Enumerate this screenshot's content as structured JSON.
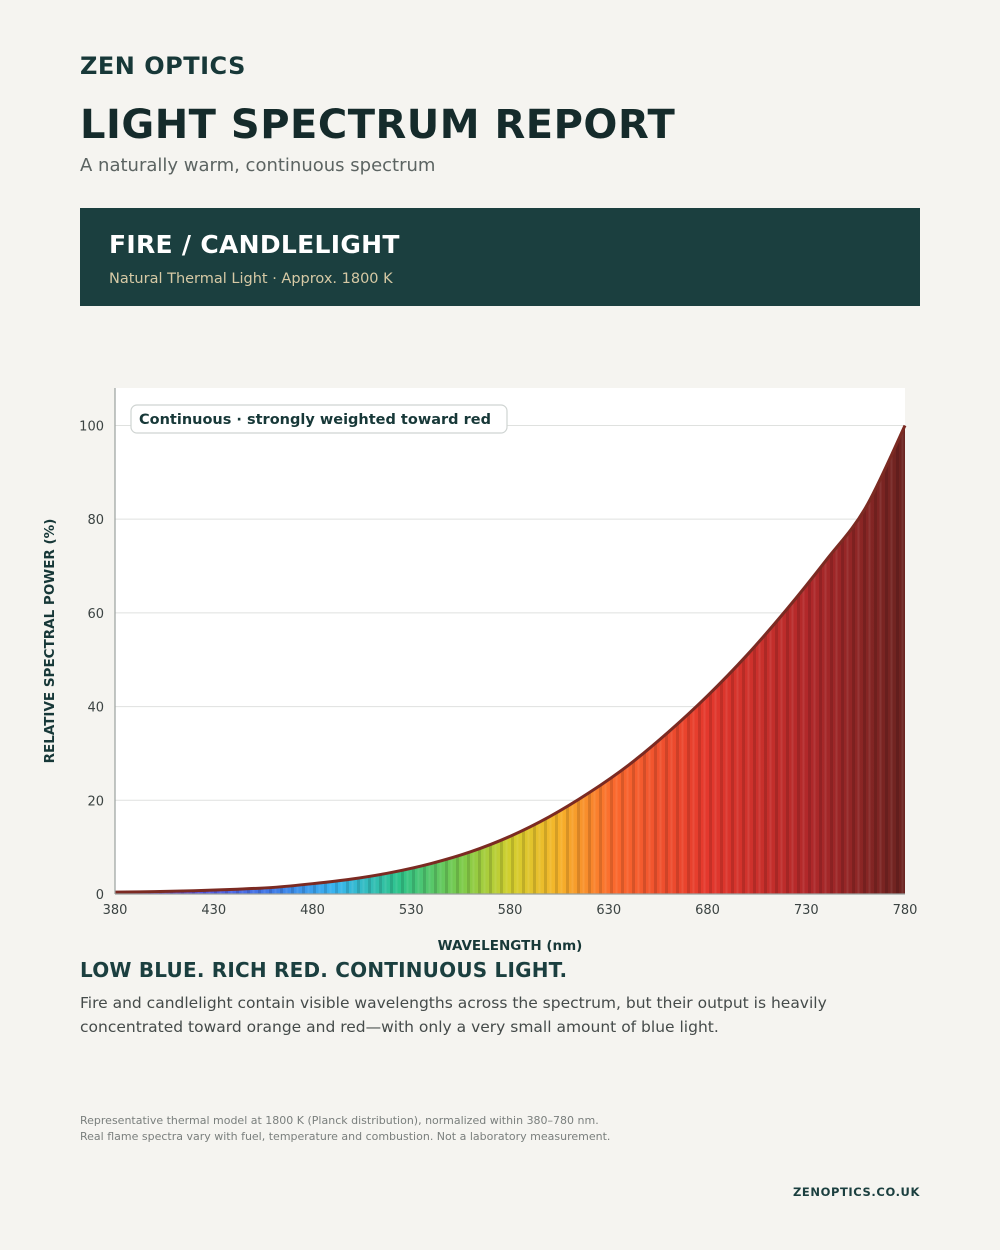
{
  "brand": "ZEN OPTICS",
  "title": "LIGHT SPECTRUM REPORT",
  "subtitle": "A naturally warm, continuous spectrum",
  "banner": {
    "title": "FIRE / CANDLELIGHT",
    "subtitle": "Natural Thermal Light · Approx. 1800 K"
  },
  "colors": {
    "background": "#f5f4f0",
    "banner": "#1b3f3f",
    "curve": "#7b2a22"
  },
  "chart_data": {
    "type": "area",
    "annotation": "Continuous · strongly weighted toward red",
    "xlabel": "WAVELENGTH (nm)",
    "ylabel": "RELATIVE SPECTRAL POWER (%)",
    "xlim": [
      380,
      780
    ],
    "ylim": [
      0,
      108
    ],
    "x_ticks": [
      380,
      430,
      480,
      530,
      580,
      630,
      680,
      730,
      780
    ],
    "y_ticks": [
      0,
      20,
      40,
      60,
      80,
      100
    ],
    "grid": true,
    "fill": "visible spectrum gradient",
    "series": [
      {
        "x": [
          380,
          400,
          420,
          440,
          460,
          480,
          500,
          520,
          540,
          560,
          580,
          600,
          620,
          640,
          660,
          680,
          700,
          720,
          740,
          760,
          780
        ],
        "values": [
          0.4,
          0.5,
          0.7,
          1.0,
          1.4,
          2.2,
          3.2,
          4.6,
          6.5,
          9.0,
          12.3,
          16.5,
          21.6,
          27.5,
          34.5,
          42.3,
          51.0,
          60.7,
          71.2,
          82.4,
          100.0
        ]
      }
    ]
  },
  "section": {
    "heading": "LOW BLUE. RICH RED. CONTINUOUS LIGHT.",
    "body": "Fire and candlelight contain visible wavelengths across the spectrum, but their output is heavily concentrated toward orange and red—with only a very small amount of blue light."
  },
  "footnote": {
    "line1": "Representative thermal model at 1800 K (Planck distribution), normalized within 380–780 nm.",
    "line2": "Real flame spectra vary with fuel, temperature and combustion. Not a laboratory measurement."
  },
  "website": "ZENOPTICS.CO.UK"
}
